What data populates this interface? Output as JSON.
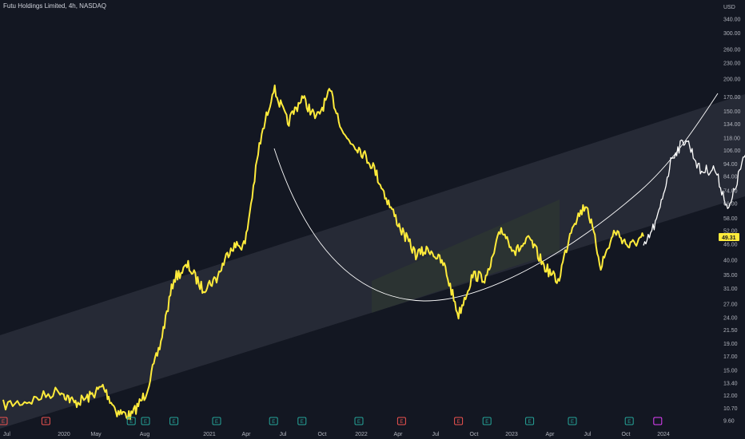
{
  "header": {
    "title": "Futu Holdings Limited, 4h, NASDAQ"
  },
  "colors": {
    "background": "#131722",
    "series_yellow": "#ffeb3b",
    "series_white": "#ffffff",
    "channel_fill": "#2a2e39",
    "inner_channel_fill": "#2d3a2d",
    "earnings_green": "#26a69a",
    "earnings_red": "#ef5350",
    "earnings_purple": "#e040fb"
  },
  "chart_data": {
    "type": "line",
    "title": "Futu Holdings Limited, 4h, NASDAQ",
    "ylabel": "USD",
    "y_scale": "log",
    "ylim": [
      9.6,
      340
    ],
    "y_ticks": [
      "340.00",
      "300.00",
      "260.00",
      "230.00",
      "200.00",
      "170.00",
      "150.00",
      "134.00",
      "118.00",
      "106.00",
      "94.00",
      "84.00",
      "74.00",
      "66.00",
      "58.00",
      "52.00",
      "46.00",
      "40.00",
      "35.00",
      "31.00",
      "27.00",
      "24.00",
      "21.50",
      "19.00",
      "17.00",
      "15.00",
      "13.40",
      "12.00",
      "10.70",
      "9.60"
    ],
    "x_ticks": [
      "Jul",
      "2020",
      "May",
      "Aug",
      "2021",
      "Apr",
      "Jul",
      "Oct",
      "2022",
      "Apr",
      "Jul",
      "Oct",
      "2023",
      "Apr",
      "Jul",
      "Oct",
      "2024"
    ],
    "last_price": "49.31",
    "series": [
      {
        "color": "#ffeb3b",
        "points": [
          [
            "2019-07",
            11.0
          ],
          [
            "2019-09",
            11.5
          ],
          [
            "2019-11",
            12.6
          ],
          [
            "2019-12",
            11.2
          ],
          [
            "2020-01",
            11.8
          ],
          [
            "2020-02",
            13.0
          ],
          [
            "2020-03",
            10.4
          ],
          [
            "2020-04",
            10.0
          ],
          [
            "2020-05",
            12.2
          ],
          [
            "2020-06",
            18.5
          ],
          [
            "2020-07",
            34.0
          ],
          [
            "2020-08",
            38.0
          ],
          [
            "2020-09",
            31.0
          ],
          [
            "2020-10",
            34.0
          ],
          [
            "2020-11",
            45.0
          ],
          [
            "2020-12",
            46.0
          ],
          [
            "2021-01",
            110.0
          ],
          [
            "2021-02",
            185.0
          ],
          [
            "2021-03",
            135.0
          ],
          [
            "2021-04",
            170.0
          ],
          [
            "2021-05",
            140.0
          ],
          [
            "2021-06",
            178.0
          ],
          [
            "2021-07",
            120.0
          ],
          [
            "2021-08",
            108.0
          ],
          [
            "2021-09",
            92.0
          ],
          [
            "2021-10",
            68.0
          ],
          [
            "2021-11",
            52.0
          ],
          [
            "2021-12",
            42.0
          ],
          [
            "2022-01",
            44.0
          ],
          [
            "2022-02",
            38.0
          ],
          [
            "2022-03",
            24.5
          ],
          [
            "2022-04",
            35.0
          ],
          [
            "2022-05",
            34.0
          ],
          [
            "2022-06",
            53.0
          ],
          [
            "2022-07",
            43.0
          ],
          [
            "2022-08",
            48.0
          ],
          [
            "2022-09",
            38.0
          ],
          [
            "2022-10",
            33.0
          ],
          [
            "2022-11",
            55.0
          ],
          [
            "2022-12",
            66.0
          ],
          [
            "2023-01",
            38.0
          ],
          [
            "2023-02",
            52.0
          ],
          [
            "2023-03",
            45.0
          ],
          [
            "2023-04",
            49.3
          ]
        ]
      },
      {
        "color": "#ffffff",
        "points": [
          [
            "2023-04",
            44.0
          ],
          [
            "2023-05",
            58.0
          ],
          [
            "2023-06",
            100.0
          ],
          [
            "2023-07",
            118.0
          ],
          [
            "2023-08",
            88.0
          ],
          [
            "2023-09",
            90.0
          ],
          [
            "2023-10",
            62.0
          ],
          [
            "2023-11",
            98.0
          ],
          [
            "2023-12",
            96.0
          ],
          [
            "2024-01",
            102.0
          ],
          [
            "2024-02",
            124.0
          ],
          [
            "2024-03",
            114.0
          ],
          [
            "2024-04",
            165.0
          ]
        ]
      }
    ],
    "earnings_markers": [
      {
        "date": "2019-07",
        "kind": "red",
        "letter": "E"
      },
      {
        "date": "2019-10",
        "kind": "red",
        "letter": "E"
      },
      {
        "date": "2020-04",
        "kind": "green",
        "letter": "E"
      },
      {
        "date": "2020-05",
        "kind": "green",
        "letter": "E"
      },
      {
        "date": "2020-07",
        "kind": "green",
        "letter": "E"
      },
      {
        "date": "2020-10",
        "kind": "green",
        "letter": "E"
      },
      {
        "date": "2021-02",
        "kind": "green",
        "letter": "E"
      },
      {
        "date": "2021-04",
        "kind": "green",
        "letter": "E"
      },
      {
        "date": "2021-08",
        "kind": "green",
        "letter": "E"
      },
      {
        "date": "2021-11",
        "kind": "red",
        "letter": "E"
      },
      {
        "date": "2022-03",
        "kind": "red",
        "letter": "E"
      },
      {
        "date": "2022-05",
        "kind": "green",
        "letter": "E"
      },
      {
        "date": "2022-08",
        "kind": "green",
        "letter": "E"
      },
      {
        "date": "2022-11",
        "kind": "green",
        "letter": "E"
      },
      {
        "date": "2023-03",
        "kind": "green",
        "letter": "E"
      },
      {
        "date": "2023-05",
        "kind": "purple",
        "letter": ""
      }
    ]
  }
}
